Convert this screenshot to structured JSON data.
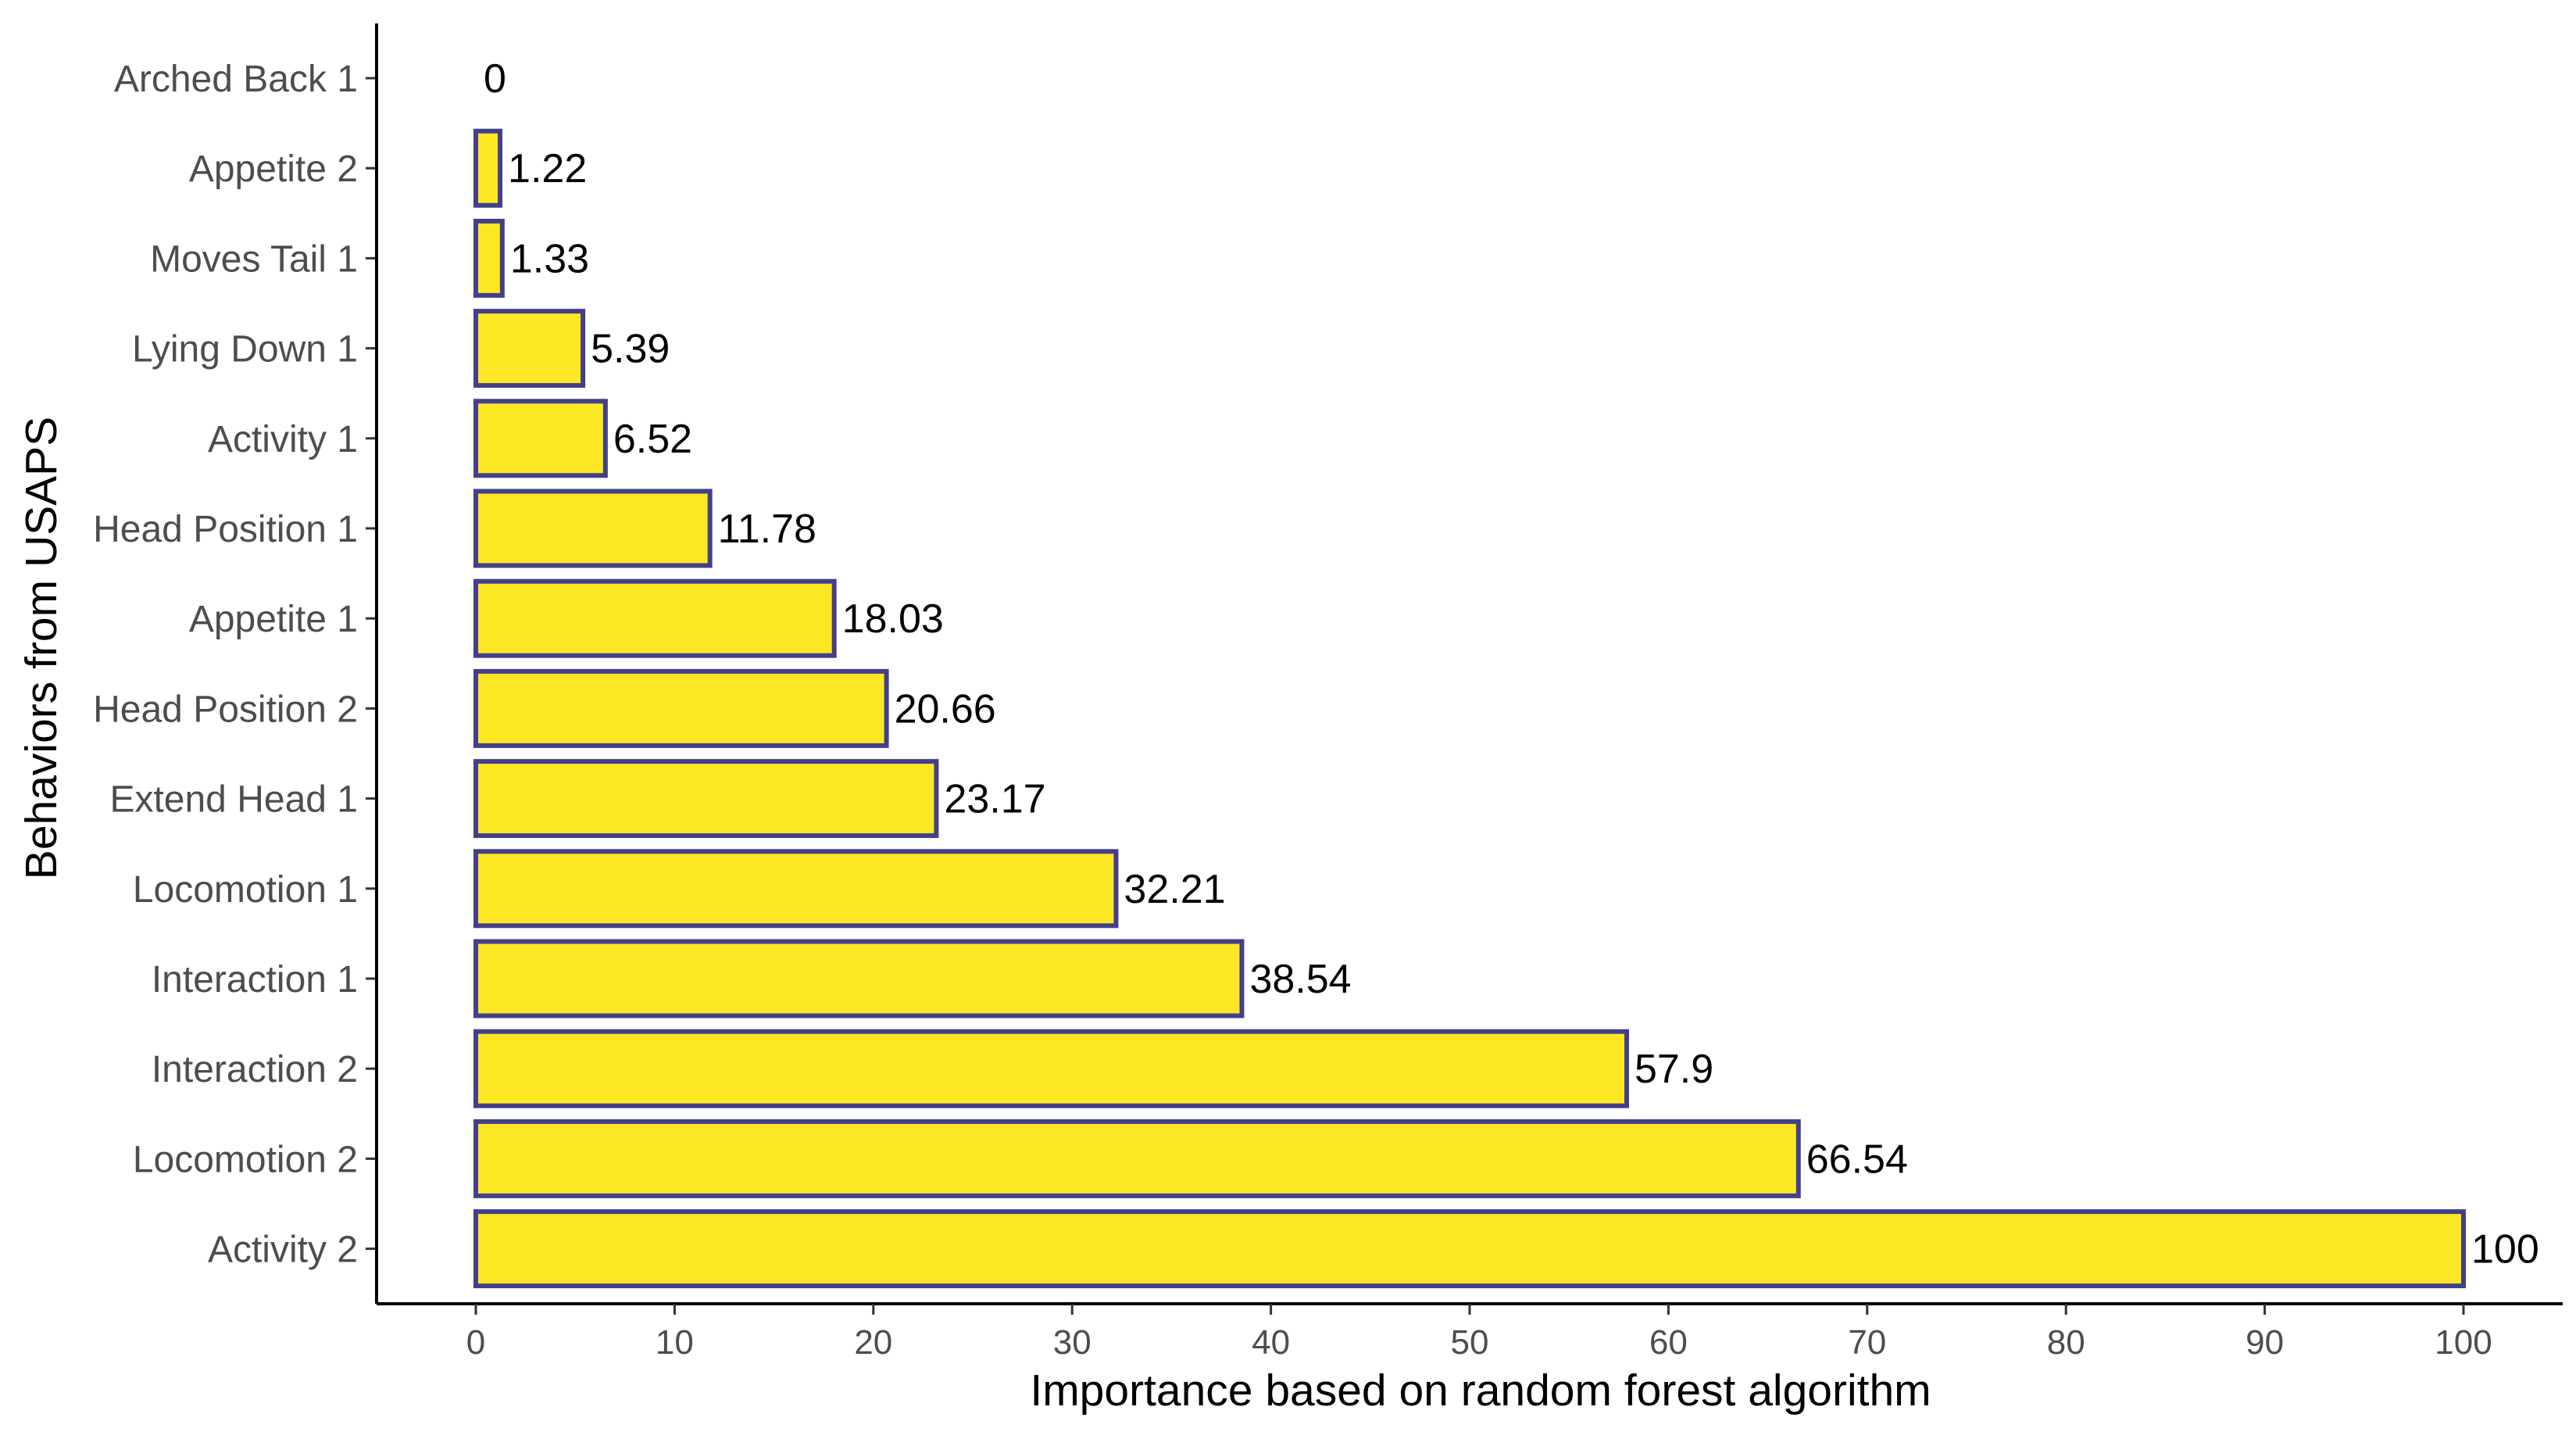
{
  "chart_data": {
    "type": "bar",
    "orientation": "horizontal",
    "title": "",
    "xlabel": "Importance based on random forest algorithm",
    "ylabel": "Behaviors from USAPS",
    "categories": [
      "Arched Back 1",
      "Appetite 2",
      "Moves Tail 1",
      "Lying Down 1",
      "Activity 1",
      "Head Position 1",
      "Appetite 1",
      "Head Position 2",
      "Extend Head 1",
      "Locomotion 1",
      "Interaction 1",
      "Interaction 2",
      "Locomotion 2",
      "Activity 2"
    ],
    "values": [
      0,
      1.22,
      1.33,
      5.39,
      6.52,
      11.78,
      18.03,
      20.66,
      23.17,
      32.21,
      38.54,
      57.9,
      66.54,
      100
    ],
    "value_labels": [
      "0",
      "1.22",
      "1.33",
      "5.39",
      "6.52",
      "11.78",
      "18.03",
      "20.66",
      "23.17",
      "32.21",
      "38.54",
      "57.9",
      "66.54",
      "100"
    ],
    "xlim": [
      -5,
      105
    ],
    "xticks": [
      0,
      10,
      20,
      30,
      40,
      50,
      60,
      70,
      80,
      90,
      100
    ],
    "grid": false,
    "legend": "none",
    "colors": {
      "bar_fill": "#FDE725",
      "bar_outline": "#443F8A",
      "axis": "#000000",
      "tick_label": "#4d4d4d",
      "data_label": "#000000"
    }
  }
}
